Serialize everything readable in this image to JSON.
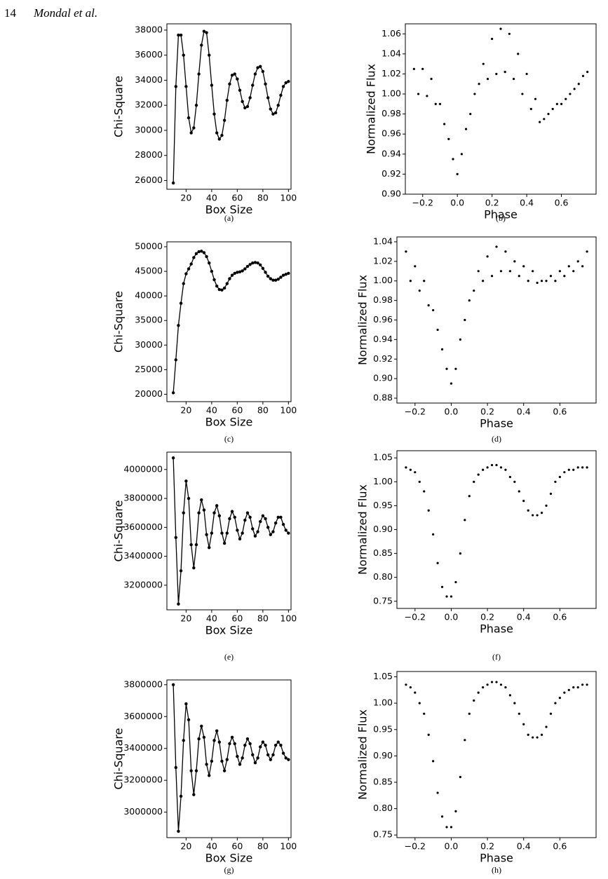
{
  "header": {
    "page_number": "14",
    "authors": "Mondal et al."
  },
  "chart_data": [
    {
      "type": "line",
      "caption": "(a)",
      "xlabel": "Box Size",
      "ylabel": "Chi-Square",
      "color": "#000000",
      "x": [
        10,
        12,
        14,
        16,
        18,
        20,
        22,
        24,
        26,
        28,
        30,
        32,
        34,
        36,
        38,
        40,
        42,
        44,
        46,
        48,
        50,
        52,
        54,
        56,
        58,
        60,
        62,
        64,
        66,
        68,
        70,
        72,
        74,
        76,
        78,
        80,
        82,
        84,
        86,
        88,
        90,
        92,
        94,
        96,
        98,
        100
      ],
      "values": [
        25800,
        33500,
        37600,
        37600,
        36000,
        33500,
        31000,
        29800,
        30200,
        32000,
        34500,
        36800,
        37900,
        37800,
        36000,
        33600,
        31300,
        29800,
        29300,
        29600,
        30800,
        32400,
        33700,
        34400,
        34500,
        34100,
        33200,
        32300,
        31800,
        31900,
        32600,
        33600,
        34500,
        35000,
        35100,
        34700,
        33700,
        32600,
        31700,
        31300,
        31400,
        32000,
        32800,
        33500,
        33800,
        33900
      ],
      "xlim": [
        5,
        102
      ],
      "ylim": [
        25300,
        38500
      ],
      "xticks": [
        20,
        40,
        60,
        80,
        100
      ],
      "yticks": [
        26000,
        28000,
        30000,
        32000,
        34000,
        36000,
        38000
      ]
    },
    {
      "type": "scatter",
      "caption": "(b)",
      "xlabel": "Phase",
      "ylabel": "Normalized Flux",
      "color": "#000000",
      "x": [
        -0.25,
        -0.225,
        -0.2,
        -0.175,
        -0.15,
        -0.125,
        -0.1,
        -0.075,
        -0.05,
        -0.025,
        0,
        0.025,
        0.05,
        0.075,
        0.1,
        0.125,
        0.15,
        0.175,
        0.2,
        0.225,
        0.25,
        0.275,
        0.3,
        0.325,
        0.35,
        0.375,
        0.4,
        0.425,
        0.45,
        0.475,
        0.5,
        0.525,
        0.55,
        0.575,
        0.6,
        0.625,
        0.65,
        0.675,
        0.7,
        0.725,
        0.75
      ],
      "values": [
        1.025,
        1.0,
        1.025,
        0.998,
        1.015,
        0.99,
        0.99,
        0.97,
        0.955,
        0.935,
        0.92,
        0.94,
        0.965,
        0.98,
        1.0,
        1.01,
        1.03,
        1.015,
        1.055,
        1.02,
        1.065,
        1.022,
        1.06,
        1.015,
        1.04,
        1.0,
        1.02,
        0.985,
        0.995,
        0.972,
        0.975,
        0.98,
        0.985,
        0.99,
        0.99,
        0.995,
        1.0,
        1.005,
        1.01,
        1.018,
        1.022
      ],
      "xlim": [
        -0.3,
        0.8
      ],
      "ylim": [
        0.9,
        1.07
      ],
      "xticks": [
        {
          "value": -0.2,
          "label": "−0.2"
        },
        {
          "value": 0,
          "label": "0.0"
        },
        0.2,
        0.4,
        0.6
      ],
      "yticks": [
        {
          "value": 0.9,
          "label": "0.90"
        },
        0.92,
        0.94,
        0.96,
        0.98,
        {
          "value": 1,
          "label": "1.00"
        },
        1.02,
        1.04,
        1.06
      ]
    },
    {
      "type": "line",
      "caption": "(c)",
      "xlabel": "Box Size",
      "ylabel": "Chi-Square",
      "color": "#000000",
      "x": [
        10,
        12,
        14,
        16,
        18,
        20,
        22,
        24,
        26,
        28,
        30,
        32,
        34,
        36,
        38,
        40,
        42,
        44,
        46,
        48,
        50,
        52,
        54,
        56,
        58,
        60,
        62,
        64,
        66,
        68,
        70,
        72,
        74,
        76,
        78,
        80,
        82,
        84,
        86,
        88,
        90,
        92,
        94,
        96,
        98,
        100
      ],
      "values": [
        20300,
        27000,
        34000,
        38500,
        42500,
        44500,
        45500,
        46500,
        47800,
        48600,
        49000,
        49100,
        48800,
        48000,
        46700,
        45000,
        43300,
        42000,
        41300,
        41200,
        41600,
        42500,
        43500,
        44200,
        44600,
        44800,
        44900,
        45100,
        45500,
        46000,
        46400,
        46700,
        46800,
        46700,
        46300,
        45600,
        44800,
        44000,
        43500,
        43200,
        43200,
        43400,
        43800,
        44200,
        44400,
        44600
      ],
      "xlim": [
        5,
        102
      ],
      "ylim": [
        18500,
        51000
      ],
      "xticks": [
        20,
        40,
        60,
        80,
        100
      ],
      "yticks": [
        20000,
        25000,
        30000,
        35000,
        40000,
        45000,
        50000
      ]
    },
    {
      "type": "scatter",
      "caption": "(d)",
      "xlabel": "Phase",
      "ylabel": "Normalized Flux",
      "color": "#000000",
      "x": [
        -0.25,
        -0.225,
        -0.2,
        -0.175,
        -0.15,
        -0.125,
        -0.1,
        -0.075,
        -0.05,
        -0.025,
        0,
        0.025,
        0.05,
        0.075,
        0.1,
        0.125,
        0.15,
        0.175,
        0.2,
        0.225,
        0.25,
        0.275,
        0.3,
        0.325,
        0.35,
        0.375,
        0.4,
        0.425,
        0.45,
        0.475,
        0.5,
        0.525,
        0.55,
        0.575,
        0.6,
        0.625,
        0.65,
        0.675,
        0.7,
        0.725,
        0.75
      ],
      "values": [
        1.03,
        1.0,
        1.015,
        0.99,
        1.0,
        0.975,
        0.97,
        0.95,
        0.93,
        0.91,
        0.895,
        0.91,
        0.94,
        0.96,
        0.98,
        0.99,
        1.01,
        1.0,
        1.025,
        1.005,
        1.035,
        1.01,
        1.03,
        1.01,
        1.02,
        1.005,
        1.015,
        1.0,
        1.01,
        0.998,
        1.0,
        1.0,
        1.005,
        1.0,
        1.01,
        1.005,
        1.015,
        1.01,
        1.02,
        1.015,
        1.03
      ],
      "xlim": [
        -0.3,
        0.8
      ],
      "ylim": [
        0.875,
        1.045
      ],
      "xticks": [
        {
          "value": -0.2,
          "label": "−0.2"
        },
        {
          "value": 0,
          "label": "0.0"
        },
        0.2,
        0.4,
        0.6
      ],
      "yticks": [
        0.88,
        {
          "value": 0.9,
          "label": "0.90"
        },
        0.92,
        0.94,
        0.96,
        0.98,
        {
          "value": 1,
          "label": "1.00"
        },
        1.02,
        1.04
      ]
    },
    {
      "type": "line",
      "caption": "(e)",
      "xlabel": "Box Size",
      "ylabel": "Chi-Square",
      "color": "#000000",
      "x": [
        10,
        12,
        14,
        16,
        18,
        20,
        22,
        24,
        26,
        28,
        30,
        32,
        34,
        36,
        38,
        40,
        42,
        44,
        46,
        48,
        50,
        52,
        54,
        56,
        58,
        60,
        62,
        64,
        66,
        68,
        70,
        72,
        74,
        76,
        78,
        80,
        82,
        84,
        86,
        88,
        90,
        92,
        94,
        96,
        98,
        100
      ],
      "values": [
        4080000,
        3530000,
        3070000,
        3300000,
        3700000,
        3920000,
        3800000,
        3480000,
        3320000,
        3480000,
        3700000,
        3790000,
        3720000,
        3550000,
        3460000,
        3560000,
        3700000,
        3750000,
        3680000,
        3560000,
        3490000,
        3560000,
        3660000,
        3710000,
        3670000,
        3580000,
        3520000,
        3560000,
        3650000,
        3700000,
        3670000,
        3590000,
        3540000,
        3570000,
        3640000,
        3680000,
        3660000,
        3600000,
        3550000,
        3570000,
        3630000,
        3670000,
        3670000,
        3620000,
        3580000,
        3560000
      ],
      "xlim": [
        5,
        102
      ],
      "ylim": [
        3030000,
        4120000
      ],
      "xticks": [
        20,
        40,
        60,
        80,
        100
      ],
      "yticks": [
        3200000,
        3400000,
        3600000,
        3800000,
        4000000
      ]
    },
    {
      "type": "scatter",
      "caption": "(f)",
      "xlabel": "Phase",
      "ylabel": "Normalized Flux",
      "color": "#000000",
      "x": [
        -0.25,
        -0.225,
        -0.2,
        -0.175,
        -0.15,
        -0.125,
        -0.1,
        -0.075,
        -0.05,
        -0.025,
        0,
        0.025,
        0.05,
        0.075,
        0.1,
        0.125,
        0.15,
        0.175,
        0.2,
        0.225,
        0.25,
        0.275,
        0.3,
        0.325,
        0.35,
        0.375,
        0.4,
        0.425,
        0.45,
        0.475,
        0.5,
        0.525,
        0.55,
        0.575,
        0.6,
        0.625,
        0.65,
        0.675,
        0.7,
        0.725,
        0.75
      ],
      "values": [
        1.03,
        1.025,
        1.02,
        1.0,
        0.98,
        0.94,
        0.89,
        0.83,
        0.78,
        0.76,
        0.76,
        0.79,
        0.85,
        0.92,
        0.97,
        1.0,
        1.015,
        1.025,
        1.03,
        1.035,
        1.035,
        1.03,
        1.025,
        1.01,
        1.0,
        0.98,
        0.96,
        0.94,
        0.93,
        0.93,
        0.935,
        0.95,
        0.975,
        1.0,
        1.01,
        1.02,
        1.025,
        1.025,
        1.03,
        1.03,
        1.03
      ],
      "xlim": [
        -0.3,
        0.8
      ],
      "ylim": [
        0.735,
        1.065
      ],
      "xticks": [
        {
          "value": -0.2,
          "label": "−0.2"
        },
        {
          "value": 0,
          "label": "0.0"
        },
        0.2,
        0.4,
        0.6
      ],
      "yticks": [
        0.75,
        {
          "value": 0.8,
          "label": "0.80"
        },
        0.85,
        {
          "value": 0.9,
          "label": "0.90"
        },
        0.95,
        {
          "value": 1,
          "label": "1.00"
        },
        1.05
      ]
    },
    {
      "type": "line",
      "caption": "(g)",
      "xlabel": "Box Size",
      "ylabel": "Chi-Square",
      "color": "#000000",
      "x": [
        10,
        12,
        14,
        16,
        18,
        20,
        22,
        24,
        26,
        28,
        30,
        32,
        34,
        36,
        38,
        40,
        42,
        44,
        46,
        48,
        50,
        52,
        54,
        56,
        58,
        60,
        62,
        64,
        66,
        68,
        70,
        72,
        74,
        76,
        78,
        80,
        82,
        84,
        86,
        88,
        90,
        92,
        94,
        96,
        98,
        100
      ],
      "values": [
        3800000,
        3280000,
        2880000,
        3100000,
        3450000,
        3680000,
        3580000,
        3260000,
        3110000,
        3260000,
        3460000,
        3540000,
        3470000,
        3300000,
        3230000,
        3320000,
        3450000,
        3510000,
        3440000,
        3320000,
        3260000,
        3330000,
        3430000,
        3470000,
        3430000,
        3350000,
        3300000,
        3340000,
        3420000,
        3460000,
        3430000,
        3360000,
        3310000,
        3340000,
        3410000,
        3440000,
        3420000,
        3360000,
        3330000,
        3360000,
        3420000,
        3440000,
        3420000,
        3370000,
        3340000,
        3330000
      ],
      "xlim": [
        5,
        102
      ],
      "ylim": [
        2840000,
        3830000
      ],
      "xticks": [
        20,
        40,
        60,
        80,
        100
      ],
      "yticks": [
        3000000,
        3200000,
        3400000,
        3600000,
        3800000
      ]
    },
    {
      "type": "scatter",
      "caption": "(h)",
      "xlabel": "Phase",
      "ylabel": "Normalized Flux",
      "color": "#000000",
      "x": [
        -0.25,
        -0.225,
        -0.2,
        -0.175,
        -0.15,
        -0.125,
        -0.1,
        -0.075,
        -0.05,
        -0.025,
        0,
        0.025,
        0.05,
        0.075,
        0.1,
        0.125,
        0.15,
        0.175,
        0.2,
        0.225,
        0.25,
        0.275,
        0.3,
        0.325,
        0.35,
        0.375,
        0.4,
        0.425,
        0.45,
        0.475,
        0.5,
        0.525,
        0.55,
        0.575,
        0.6,
        0.625,
        0.65,
        0.675,
        0.7,
        0.725,
        0.75
      ],
      "values": [
        1.035,
        1.03,
        1.02,
        1.0,
        0.98,
        0.94,
        0.89,
        0.83,
        0.785,
        0.765,
        0.765,
        0.795,
        0.86,
        0.93,
        0.98,
        1.005,
        1.02,
        1.03,
        1.035,
        1.04,
        1.04,
        1.035,
        1.03,
        1.015,
        1.0,
        0.98,
        0.96,
        0.94,
        0.935,
        0.935,
        0.94,
        0.955,
        0.98,
        1.0,
        1.01,
        1.02,
        1.025,
        1.03,
        1.03,
        1.035,
        1.035
      ],
      "xlim": [
        -0.3,
        0.8
      ],
      "ylim": [
        0.745,
        1.06
      ],
      "xticks": [
        {
          "value": -0.2,
          "label": "−0.2"
        },
        {
          "value": 0,
          "label": "0.0"
        },
        0.2,
        0.4,
        0.6
      ],
      "yticks": [
        0.75,
        {
          "value": 0.8,
          "label": "0.80"
        },
        0.85,
        {
          "value": 0.9,
          "label": "0.90"
        },
        0.95,
        {
          "value": 1,
          "label": "1.00"
        },
        1.05
      ]
    }
  ]
}
